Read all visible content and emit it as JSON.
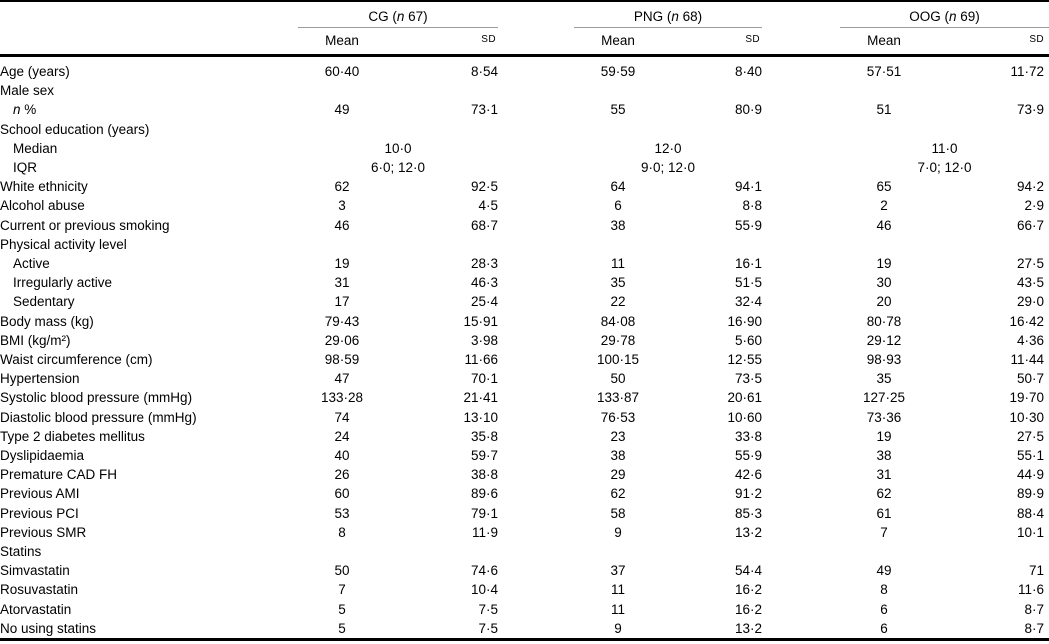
{
  "colors": {
    "text": "#000000",
    "background": "#ffffff",
    "rule": "#000000",
    "group_underline": "#9b9b9b"
  },
  "table": {
    "header": {
      "groups": [
        {
          "prefix": "CG (",
          "n": "n",
          "suffix": " 67)"
        },
        {
          "prefix": "PNG (",
          "n": "n",
          "suffix": " 68)"
        },
        {
          "prefix": "OOG (",
          "n": "n",
          "suffix": " 69)"
        }
      ],
      "mean_label": "Mean",
      "sd_label": "SD"
    },
    "rows": [
      {
        "label": "Age (years)",
        "em": "",
        "indent": false,
        "span": false,
        "cells": [
          [
            "60·40",
            "8·54"
          ],
          [
            "59·59",
            "8·40"
          ],
          [
            "57·51",
            "11·72"
          ]
        ]
      },
      {
        "label": "Male sex",
        "em": "",
        "indent": false,
        "span": false,
        "cells": [
          [
            "",
            ""
          ],
          [
            "",
            ""
          ],
          [
            "",
            ""
          ]
        ]
      },
      {
        "label": " %",
        "em": "n",
        "indent": true,
        "span": false,
        "cells": [
          [
            "49",
            "73·1"
          ],
          [
            "55",
            "80·9"
          ],
          [
            "51",
            "73·9"
          ]
        ]
      },
      {
        "label": "School education (years)",
        "em": "",
        "indent": false,
        "span": false,
        "cells": [
          [
            "",
            ""
          ],
          [
            "",
            ""
          ],
          [
            "",
            ""
          ]
        ]
      },
      {
        "label": "Median",
        "em": "",
        "indent": true,
        "span": true,
        "cells": [
          "10·0",
          "12·0",
          "11·0"
        ]
      },
      {
        "label": "IQR",
        "em": "",
        "indent": true,
        "span": true,
        "cells": [
          "6·0; 12·0",
          "9·0; 12·0",
          "7·0; 12·0"
        ]
      },
      {
        "label": "White ethnicity",
        "em": "",
        "indent": false,
        "span": false,
        "cells": [
          [
            "62",
            "92·5"
          ],
          [
            "64",
            "94·1"
          ],
          [
            "65",
            "94·2"
          ]
        ]
      },
      {
        "label": "Alcohol abuse",
        "em": "",
        "indent": false,
        "span": false,
        "cells": [
          [
            "3",
            "4·5"
          ],
          [
            "6",
            "8·8"
          ],
          [
            "2",
            "2·9"
          ]
        ]
      },
      {
        "label": "Current or previous smoking",
        "em": "",
        "indent": false,
        "span": false,
        "cells": [
          [
            "46",
            "68·7"
          ],
          [
            "38",
            "55·9"
          ],
          [
            "46",
            "66·7"
          ]
        ]
      },
      {
        "label": "Physical activity level",
        "em": "",
        "indent": false,
        "span": false,
        "cells": [
          [
            "",
            ""
          ],
          [
            "",
            ""
          ],
          [
            "",
            ""
          ]
        ]
      },
      {
        "label": "Active",
        "em": "",
        "indent": true,
        "span": false,
        "cells": [
          [
            "19",
            "28·3"
          ],
          [
            "11",
            "16·1"
          ],
          [
            "19",
            "27·5"
          ]
        ]
      },
      {
        "label": "Irregularly active",
        "em": "",
        "indent": true,
        "span": false,
        "cells": [
          [
            "31",
            "46·3"
          ],
          [
            "35",
            "51·5"
          ],
          [
            "30",
            "43·5"
          ]
        ]
      },
      {
        "label": "Sedentary",
        "em": "",
        "indent": true,
        "span": false,
        "cells": [
          [
            "17",
            "25·4"
          ],
          [
            "22",
            "32·4"
          ],
          [
            "20",
            "29·0"
          ]
        ]
      },
      {
        "label": "Body mass (kg)",
        "em": "",
        "indent": false,
        "span": false,
        "cells": [
          [
            "79·43",
            "15·91"
          ],
          [
            "84·08",
            "16·90"
          ],
          [
            "80·78",
            "16·42"
          ]
        ]
      },
      {
        "label": "BMI (kg/m²)",
        "em": "",
        "indent": false,
        "span": false,
        "cells": [
          [
            "29·06",
            "3·98"
          ],
          [
            "29·78",
            "5·60"
          ],
          [
            "29·12",
            "4·36"
          ]
        ]
      },
      {
        "label": "Waist circumference (cm)",
        "em": "",
        "indent": false,
        "span": false,
        "cells": [
          [
            "98·59",
            "11·66"
          ],
          [
            "100·15",
            "12·55"
          ],
          [
            "98·93",
            "11·44"
          ]
        ]
      },
      {
        "label": "Hypertension",
        "em": "",
        "indent": false,
        "span": false,
        "cells": [
          [
            "47",
            "70·1"
          ],
          [
            "50",
            "73·5"
          ],
          [
            "35",
            "50·7"
          ]
        ]
      },
      {
        "label": "Systolic blood pressure (mmHg)",
        "em": "",
        "indent": false,
        "span": false,
        "cells": [
          [
            "133·28",
            "21·41"
          ],
          [
            "133·87",
            "20·61"
          ],
          [
            "127·25",
            "19·70"
          ]
        ]
      },
      {
        "label": "Diastolic blood pressure (mmHg)",
        "em": "",
        "indent": false,
        "span": false,
        "cells": [
          [
            "74",
            "13·10"
          ],
          [
            "76·53",
            "10·60"
          ],
          [
            "73·36",
            "10·30"
          ]
        ]
      },
      {
        "label": "Type 2 diabetes mellitus",
        "em": "",
        "indent": false,
        "span": false,
        "cells": [
          [
            "24",
            "35·8"
          ],
          [
            "23",
            "33·8"
          ],
          [
            "19",
            "27·5"
          ]
        ]
      },
      {
        "label": "Dyslipidaemia",
        "em": "",
        "indent": false,
        "span": false,
        "cells": [
          [
            "40",
            "59·7"
          ],
          [
            "38",
            "55·9"
          ],
          [
            "38",
            "55·1"
          ]
        ]
      },
      {
        "label": "Premature CAD FH",
        "em": "",
        "indent": false,
        "span": false,
        "cells": [
          [
            "26",
            "38·8"
          ],
          [
            "29",
            "42·6"
          ],
          [
            "31",
            "44·9"
          ]
        ]
      },
      {
        "label": "Previous AMI",
        "em": "",
        "indent": false,
        "span": false,
        "cells": [
          [
            "60",
            "89·6"
          ],
          [
            "62",
            "91·2"
          ],
          [
            "62",
            "89·9"
          ]
        ]
      },
      {
        "label": "Previous PCI",
        "em": "",
        "indent": false,
        "span": false,
        "cells": [
          [
            "53",
            "79·1"
          ],
          [
            "58",
            "85·3"
          ],
          [
            "61",
            "88·4"
          ]
        ]
      },
      {
        "label": "Previous SMR",
        "em": "",
        "indent": false,
        "span": false,
        "cells": [
          [
            "8",
            "11·9"
          ],
          [
            "9",
            "13·2"
          ],
          [
            "7",
            "10·1"
          ]
        ]
      },
      {
        "label": "Statins",
        "em": "",
        "indent": false,
        "span": false,
        "cells": [
          [
            "",
            ""
          ],
          [
            "",
            ""
          ],
          [
            "",
            ""
          ]
        ]
      },
      {
        "label": "Simvastatin",
        "em": "",
        "indent": false,
        "span": false,
        "cells": [
          [
            "50",
            "74·6"
          ],
          [
            "37",
            "54·4"
          ],
          [
            "49",
            "71"
          ]
        ]
      },
      {
        "label": "Rosuvastatin",
        "em": "",
        "indent": false,
        "span": false,
        "cells": [
          [
            "7",
            "10·4"
          ],
          [
            "11",
            "16·2"
          ],
          [
            "8",
            "11·6"
          ]
        ]
      },
      {
        "label": "Atorvastatin",
        "em": "",
        "indent": false,
        "span": false,
        "cells": [
          [
            "5",
            "7·5"
          ],
          [
            "11",
            "16·2"
          ],
          [
            "6",
            "8·7"
          ]
        ]
      },
      {
        "label": "No using statins",
        "em": "",
        "indent": false,
        "span": false,
        "cells": [
          [
            "5",
            "7·5"
          ],
          [
            "9",
            "13·2"
          ],
          [
            "6",
            "8·7"
          ]
        ]
      }
    ]
  }
}
